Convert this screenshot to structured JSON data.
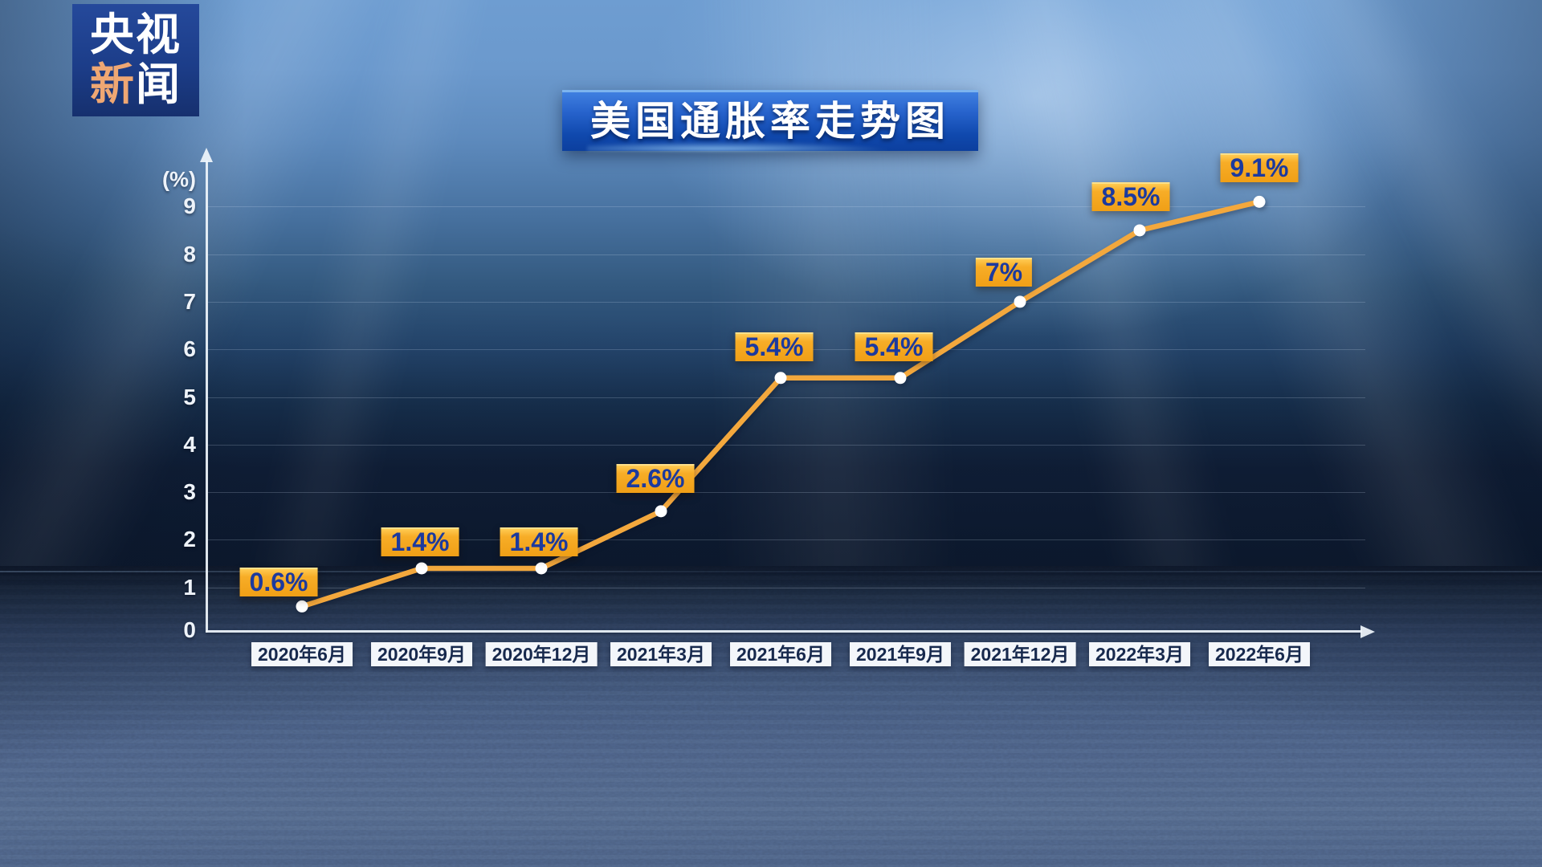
{
  "brand": {
    "line1": "央视",
    "line2_first": "新",
    "line2_second": "闻"
  },
  "header": {
    "title": "美国通胀率走势图"
  },
  "chart_data": {
    "type": "line",
    "title": "美国通胀率走势图",
    "categories": [
      "2020年6月",
      "2020年9月",
      "2020年12月",
      "2021年3月",
      "2021年6月",
      "2021年9月",
      "2021年12月",
      "2022年3月",
      "2022年6月"
    ],
    "values": [
      0.6,
      1.4,
      1.4,
      2.6,
      5.4,
      5.4,
      7,
      8.5,
      9.1
    ],
    "point_labels": [
      "0.6%",
      "1.4%",
      "1.4%",
      "2.6%",
      "5.4%",
      "5.4%",
      "7%",
      "8.5%",
      "9.1%"
    ],
    "unit_label": "(%)",
    "y_ticks": [
      0,
      1,
      2,
      3,
      4,
      5,
      6,
      7,
      8,
      9
    ],
    "ylim": [
      0,
      9.9
    ],
    "grid": true,
    "legend": "none",
    "colors": {
      "line": "#f3a83d",
      "marker": "#ffffff",
      "label_bg": "#f5a71f",
      "label_text": "#1c3a9e",
      "xlabel_bg": "#f3f6fa",
      "xlabel_text": "#17294d",
      "axis": "#eef3f9",
      "banner": "#1049ae",
      "logo_bg": "#1c3d89",
      "logo_accent": "#efa773"
    }
  }
}
